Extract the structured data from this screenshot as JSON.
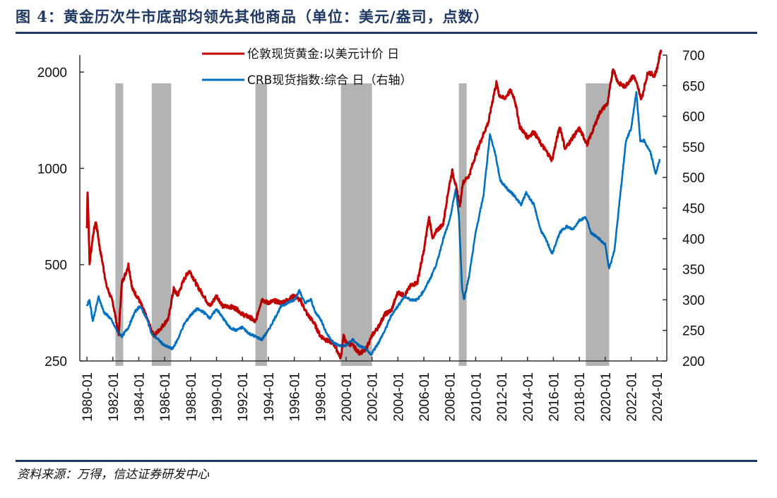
{
  "figure": {
    "title": "图 4：黄金历次牛市底部均领先其他商品（单位：美元/盎司，点数）",
    "source": "资料来源：万得，信达证券研发中心",
    "title_color": "#1f3864"
  },
  "chart_data": {
    "type": "line",
    "title": "黄金历次牛市底部均领先其他商品",
    "unit_note": "单位：美元/盎司，点数",
    "xlabel": "",
    "x_range": [
      "1980-01",
      "2024-06"
    ],
    "x_tick_labels": [
      "1980-01",
      "1982-01",
      "1984-01",
      "1986-01",
      "1988-01",
      "1990-01",
      "1992-01",
      "1994-01",
      "1996-01",
      "1998-01",
      "2000-01",
      "2002-01",
      "2004-01",
      "2006-01",
      "2008-01",
      "2010-01",
      "2012-01",
      "2014-01",
      "2016-01",
      "2018-01",
      "2020-01",
      "2022-01",
      "2024-01"
    ],
    "left_axis": {
      "label": "伦敦现货黄金 (美元/盎司)",
      "scale": "log",
      "range": [
        250,
        2300
      ],
      "ticks": [
        250,
        500,
        1000,
        2000
      ]
    },
    "right_axis": {
      "label": "CRB现货指数 (点)",
      "scale": "linear",
      "range": [
        200,
        700
      ],
      "ticks": [
        200,
        250,
        300,
        350,
        400,
        450,
        500,
        550,
        600,
        650,
        700
      ]
    },
    "legend": {
      "placement": "top-center",
      "entries": [
        "伦敦现货黄金:以美元计价 日",
        "CRB现货指数:综合 日（右轴）"
      ]
    },
    "grid": false,
    "shaded_periods": [
      {
        "start": 1982.2,
        "end": 1982.8
      },
      {
        "start": 1985.0,
        "end": 1986.5
      },
      {
        "start": 1993.0,
        "end": 1993.9
      },
      {
        "start": 1999.6,
        "end": 2002.0
      },
      {
        "start": 2008.7,
        "end": 2009.3
      },
      {
        "start": 2018.5,
        "end": 2020.3
      }
    ],
    "shade_color": "#b3b3b3",
    "series": [
      {
        "name": "伦敦现货黄金:以美元计价 日",
        "axis": "left",
        "color": "#c00000",
        "points": [
          [
            1980.0,
            650
          ],
          [
            1980.05,
            850
          ],
          [
            1980.2,
            500
          ],
          [
            1980.5,
            630
          ],
          [
            1980.7,
            680
          ],
          [
            1981.0,
            560
          ],
          [
            1981.5,
            430
          ],
          [
            1982.0,
            380
          ],
          [
            1982.45,
            300
          ],
          [
            1982.7,
            440
          ],
          [
            1983.0,
            470
          ],
          [
            1983.2,
            500
          ],
          [
            1983.5,
            420
          ],
          [
            1984.0,
            390
          ],
          [
            1984.5,
            350
          ],
          [
            1985.0,
            310
          ],
          [
            1985.2,
            300
          ],
          [
            1985.8,
            320
          ],
          [
            1986.3,
            340
          ],
          [
            1986.7,
            420
          ],
          [
            1987.0,
            400
          ],
          [
            1987.5,
            450
          ],
          [
            1987.9,
            480
          ],
          [
            1988.5,
            430
          ],
          [
            1989.0,
            400
          ],
          [
            1989.5,
            370
          ],
          [
            1990.0,
            400
          ],
          [
            1990.5,
            370
          ],
          [
            1991.0,
            370
          ],
          [
            1991.5,
            365
          ],
          [
            1992.0,
            350
          ],
          [
            1992.7,
            340
          ],
          [
            1993.0,
            330
          ],
          [
            1993.5,
            390
          ],
          [
            1993.9,
            380
          ],
          [
            1994.5,
            385
          ],
          [
            1995.0,
            380
          ],
          [
            1995.5,
            388
          ],
          [
            1996.0,
            400
          ],
          [
            1996.5,
            385
          ],
          [
            1997.0,
            350
          ],
          [
            1997.5,
            330
          ],
          [
            1998.0,
            300
          ],
          [
            1998.5,
            290
          ],
          [
            1999.0,
            285
          ],
          [
            1999.6,
            255
          ],
          [
            1999.8,
            300
          ],
          [
            2000.0,
            285
          ],
          [
            2000.5,
            280
          ],
          [
            2001.0,
            265
          ],
          [
            2001.5,
            270
          ],
          [
            2002.0,
            300
          ],
          [
            2002.5,
            320
          ],
          [
            2003.0,
            350
          ],
          [
            2003.5,
            360
          ],
          [
            2004.0,
            410
          ],
          [
            2004.5,
            400
          ],
          [
            2005.0,
            430
          ],
          [
            2005.5,
            440
          ],
          [
            2006.0,
            550
          ],
          [
            2006.4,
            700
          ],
          [
            2006.7,
            600
          ],
          [
            2007.0,
            640
          ],
          [
            2007.5,
            670
          ],
          [
            2008.0,
            900
          ],
          [
            2008.2,
            980
          ],
          [
            2008.5,
            870
          ],
          [
            2008.8,
            760
          ],
          [
            2009.0,
            900
          ],
          [
            2009.5,
            950
          ],
          [
            2010.0,
            1100
          ],
          [
            2010.5,
            1250
          ],
          [
            2011.0,
            1400
          ],
          [
            2011.6,
            1850
          ],
          [
            2011.8,
            1700
          ],
          [
            2012.2,
            1650
          ],
          [
            2012.7,
            1750
          ],
          [
            2013.0,
            1650
          ],
          [
            2013.4,
            1350
          ],
          [
            2013.7,
            1300
          ],
          [
            2014.0,
            1250
          ],
          [
            2014.5,
            1300
          ],
          [
            2015.0,
            1200
          ],
          [
            2015.9,
            1060
          ],
          [
            2016.5,
            1350
          ],
          [
            2016.9,
            1150
          ],
          [
            2017.5,
            1250
          ],
          [
            2018.0,
            1330
          ],
          [
            2018.6,
            1190
          ],
          [
            2019.0,
            1300
          ],
          [
            2019.6,
            1500
          ],
          [
            2020.2,
            1600
          ],
          [
            2020.6,
            2050
          ],
          [
            2021.0,
            1850
          ],
          [
            2021.5,
            1800
          ],
          [
            2022.2,
            1950
          ],
          [
            2022.8,
            1640
          ],
          [
            2023.3,
            2000
          ],
          [
            2023.8,
            1950
          ],
          [
            2024.0,
            2050
          ],
          [
            2024.3,
            2350
          ]
        ]
      },
      {
        "name": "CRB现货指数:综合 日（右轴）",
        "axis": "right",
        "color": "#0070c0",
        "points": [
          [
            1980.0,
            290
          ],
          [
            1980.2,
            300
          ],
          [
            1980.45,
            265
          ],
          [
            1980.9,
            305
          ],
          [
            1981.3,
            280
          ],
          [
            1981.8,
            270
          ],
          [
            1982.3,
            250
          ],
          [
            1982.7,
            240
          ],
          [
            1983.2,
            255
          ],
          [
            1983.7,
            280
          ],
          [
            1984.1,
            290
          ],
          [
            1984.6,
            270
          ],
          [
            1985.0,
            245
          ],
          [
            1985.5,
            235
          ],
          [
            1986.0,
            225
          ],
          [
            1986.6,
            220
          ],
          [
            1987.0,
            235
          ],
          [
            1987.5,
            260
          ],
          [
            1988.0,
            275
          ],
          [
            1988.5,
            285
          ],
          [
            1989.0,
            280
          ],
          [
            1989.5,
            270
          ],
          [
            1990.0,
            285
          ],
          [
            1990.5,
            270
          ],
          [
            1991.0,
            255
          ],
          [
            1991.5,
            250
          ],
          [
            1992.0,
            255
          ],
          [
            1992.5,
            245
          ],
          [
            1993.0,
            240
          ],
          [
            1993.5,
            235
          ],
          [
            1994.0,
            250
          ],
          [
            1994.5,
            270
          ],
          [
            1995.0,
            290
          ],
          [
            1995.5,
            295
          ],
          [
            1996.0,
            300
          ],
          [
            1996.4,
            315
          ],
          [
            1996.8,
            295
          ],
          [
            1997.3,
            300
          ],
          [
            1997.6,
            280
          ],
          [
            1998.0,
            270
          ],
          [
            1998.5,
            245
          ],
          [
            1999.0,
            230
          ],
          [
            1999.5,
            225
          ],
          [
            2000.0,
            225
          ],
          [
            2000.5,
            235
          ],
          [
            2001.0,
            225
          ],
          [
            2001.5,
            220
          ],
          [
            2001.9,
            210
          ],
          [
            2002.5,
            230
          ],
          [
            2003.0,
            250
          ],
          [
            2003.5,
            275
          ],
          [
            2004.0,
            290
          ],
          [
            2004.5,
            305
          ],
          [
            2005.0,
            300
          ],
          [
            2005.5,
            300
          ],
          [
            2006.0,
            315
          ],
          [
            2006.5,
            335
          ],
          [
            2007.0,
            360
          ],
          [
            2007.5,
            400
          ],
          [
            2008.0,
            430
          ],
          [
            2008.45,
            480
          ],
          [
            2008.7,
            440
          ],
          [
            2008.95,
            320
          ],
          [
            2009.1,
            300
          ],
          [
            2009.5,
            340
          ],
          [
            2010.0,
            410
          ],
          [
            2010.6,
            470
          ],
          [
            2011.1,
            570
          ],
          [
            2011.5,
            540
          ],
          [
            2011.9,
            495
          ],
          [
            2012.5,
            480
          ],
          [
            2013.0,
            470
          ],
          [
            2013.5,
            455
          ],
          [
            2013.9,
            475
          ],
          [
            2014.5,
            455
          ],
          [
            2015.0,
            415
          ],
          [
            2015.5,
            395
          ],
          [
            2015.9,
            375
          ],
          [
            2016.5,
            410
          ],
          [
            2017.0,
            420
          ],
          [
            2017.5,
            415
          ],
          [
            2018.0,
            430
          ],
          [
            2018.5,
            435
          ],
          [
            2018.9,
            410
          ],
          [
            2019.5,
            400
          ],
          [
            2020.0,
            390
          ],
          [
            2020.3,
            350
          ],
          [
            2020.7,
            380
          ],
          [
            2021.2,
            480
          ],
          [
            2021.6,
            560
          ],
          [
            2022.0,
            580
          ],
          [
            2022.4,
            640
          ],
          [
            2022.7,
            560
          ],
          [
            2023.0,
            560
          ],
          [
            2023.5,
            540
          ],
          [
            2023.9,
            505
          ],
          [
            2024.2,
            530
          ]
        ]
      }
    ]
  }
}
